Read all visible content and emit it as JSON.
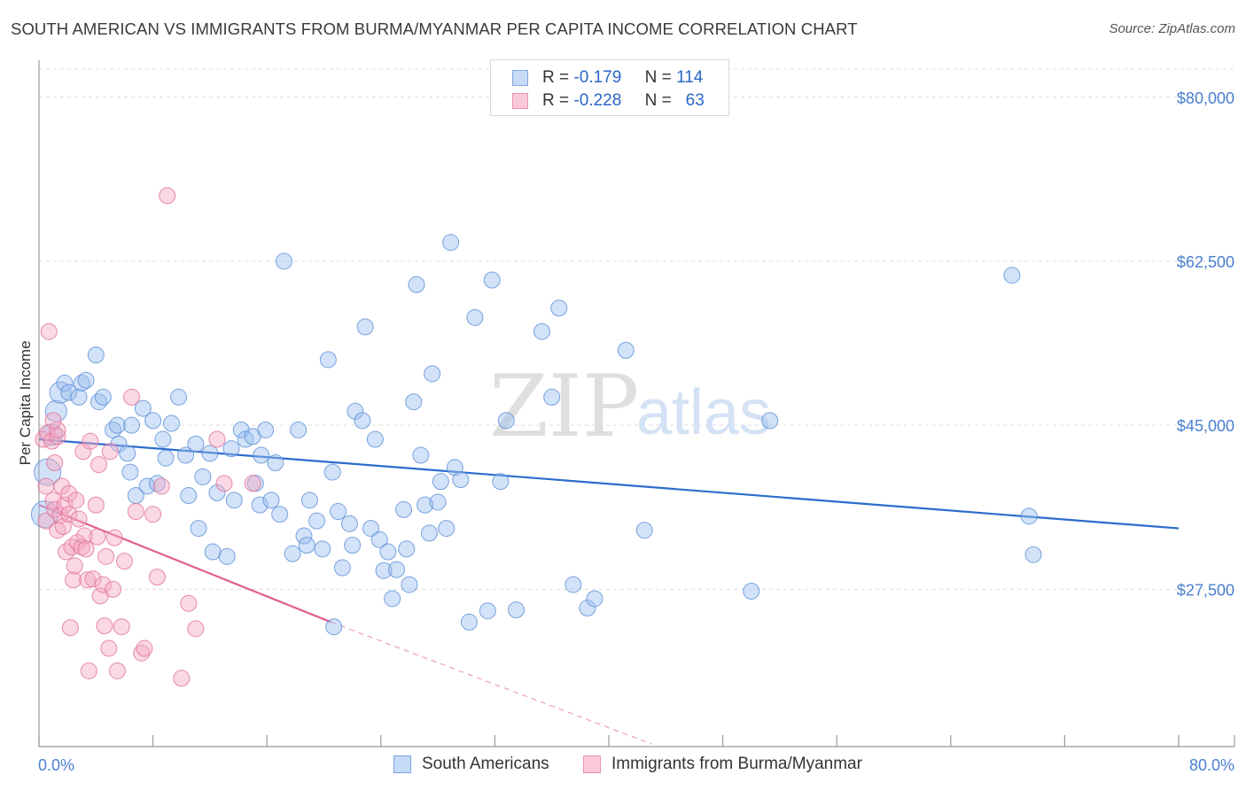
{
  "title": "SOUTH AMERICAN VS IMMIGRANTS FROM BURMA/MYANMAR PER CAPITA INCOME CORRELATION CHART",
  "source": "Source: ZipAtlas.com",
  "watermark": {
    "zip": "ZIP",
    "atlas": "atlas"
  },
  "legend": {
    "rows": [
      {
        "r_label": "R =",
        "r_value": "-0.179",
        "n_label": "N =",
        "n_value": "114",
        "color": "#9bbfef"
      },
      {
        "r_label": "R =",
        "r_value": "-0.228",
        "n_label": "N =",
        "n_value": "63",
        "color": "#f4a9c3"
      }
    ]
  },
  "bottom_legend": [
    {
      "label": "South Americans",
      "color": "#9bbfef"
    },
    {
      "label": "Immigrants from Burma/Myanmar",
      "color": "#f4a9c3"
    }
  ],
  "chart_data": {
    "type": "scatter",
    "xlabel": "",
    "ylabel": "Per Capita Income",
    "xlim": [
      0,
      80
    ],
    "ylim": [
      11000,
      83000
    ],
    "x_tick_labels": [
      "0.0%",
      "80.0%"
    ],
    "y_ticks": [
      27500,
      45000,
      62500,
      80000
    ],
    "y_tick_labels": [
      "$27,500",
      "$45,000",
      "$62,500",
      "$80,000"
    ],
    "series": [
      {
        "name": "South Americans",
        "color": "#9bbfef",
        "stroke": "#5b8fd6",
        "trend": {
          "x0": 0,
          "y0": 43500,
          "x1": 80,
          "y1": 34000,
          "color": "#2a6ccc"
        },
        "points": [
          [
            0.4,
            35500,
            3
          ],
          [
            0.6,
            40000,
            3
          ],
          [
            0.9,
            44000,
            2
          ],
          [
            1.2,
            46500,
            2
          ],
          [
            1.5,
            48500,
            2
          ],
          [
            1.8,
            49500,
            1
          ],
          [
            2.1,
            48500,
            1
          ],
          [
            2.8,
            48000,
            1
          ],
          [
            3.0,
            49500,
            1
          ],
          [
            3.3,
            49800,
            1
          ],
          [
            4.0,
            52500,
            1
          ],
          [
            4.2,
            47500,
            1
          ],
          [
            4.5,
            48000,
            1
          ],
          [
            5.2,
            44500,
            1
          ],
          [
            5.5,
            45000,
            1
          ],
          [
            5.6,
            43000,
            1
          ],
          [
            6.2,
            42000,
            1
          ],
          [
            6.5,
            45000,
            1
          ],
          [
            6.4,
            40000,
            1
          ],
          [
            6.8,
            37500,
            1
          ],
          [
            7.3,
            46800,
            1
          ],
          [
            7.6,
            38500,
            1
          ],
          [
            8.0,
            45500,
            1
          ],
          [
            8.3,
            38800,
            1
          ],
          [
            8.7,
            43500,
            1
          ],
          [
            8.9,
            41500,
            1
          ],
          [
            9.3,
            45200,
            1
          ],
          [
            9.8,
            48000,
            1
          ],
          [
            10.3,
            41800,
            1
          ],
          [
            10.5,
            37500,
            1
          ],
          [
            11.0,
            43000,
            1
          ],
          [
            11.2,
            34000,
            1
          ],
          [
            11.5,
            39500,
            1
          ],
          [
            12.0,
            42000,
            1
          ],
          [
            12.2,
            31500,
            1
          ],
          [
            12.5,
            37800,
            1
          ],
          [
            13.2,
            31000,
            1
          ],
          [
            13.5,
            42500,
            1
          ],
          [
            13.7,
            37000,
            1
          ],
          [
            14.2,
            44500,
            1
          ],
          [
            14.5,
            43500,
            1
          ],
          [
            15.0,
            43800,
            1
          ],
          [
            15.2,
            38800,
            1
          ],
          [
            15.5,
            36500,
            1
          ],
          [
            15.6,
            41800,
            1
          ],
          [
            15.9,
            44500,
            1
          ],
          [
            16.3,
            37000,
            1
          ],
          [
            16.6,
            41000,
            1
          ],
          [
            16.9,
            35500,
            1
          ],
          [
            17.2,
            62500,
            1
          ],
          [
            17.8,
            31300,
            1
          ],
          [
            18.2,
            44500,
            1
          ],
          [
            18.6,
            33200,
            1
          ],
          [
            18.8,
            32200,
            1
          ],
          [
            19.0,
            37000,
            1
          ],
          [
            19.5,
            34800,
            1
          ],
          [
            19.9,
            31800,
            1
          ],
          [
            20.3,
            52000,
            1
          ],
          [
            20.6,
            40000,
            1
          ],
          [
            21.0,
            35800,
            1
          ],
          [
            21.3,
            29800,
            1
          ],
          [
            21.8,
            34500,
            1
          ],
          [
            22.0,
            32200,
            1
          ],
          [
            22.2,
            46500,
            1
          ],
          [
            22.7,
            45500,
            1
          ],
          [
            22.9,
            55500,
            1
          ],
          [
            23.3,
            34000,
            1
          ],
          [
            23.6,
            43500,
            1
          ],
          [
            23.9,
            32800,
            1
          ],
          [
            24.2,
            29500,
            1
          ],
          [
            24.5,
            31500,
            1
          ],
          [
            24.8,
            26500,
            1
          ],
          [
            25.1,
            29600,
            1
          ],
          [
            25.6,
            36000,
            1
          ],
          [
            25.8,
            31800,
            1
          ],
          [
            26.0,
            28000,
            1
          ],
          [
            26.3,
            47500,
            1
          ],
          [
            26.5,
            60000,
            1
          ],
          [
            26.8,
            41800,
            1
          ],
          [
            27.1,
            36500,
            1
          ],
          [
            27.4,
            33500,
            1
          ],
          [
            27.6,
            50500,
            1
          ],
          [
            28.0,
            36800,
            1
          ],
          [
            28.2,
            39000,
            1
          ],
          [
            28.6,
            34000,
            1
          ],
          [
            28.9,
            64500,
            1
          ],
          [
            29.2,
            40500,
            1
          ],
          [
            29.6,
            39200,
            1
          ],
          [
            30.2,
            24000,
            1
          ],
          [
            30.6,
            56500,
            1
          ],
          [
            31.5,
            25200,
            1
          ],
          [
            31.8,
            60500,
            1
          ],
          [
            32.4,
            39000,
            1
          ],
          [
            32.8,
            45500,
            1
          ],
          [
            33.5,
            25300,
            1
          ],
          [
            35.3,
            55000,
            1
          ],
          [
            36.0,
            48000,
            1
          ],
          [
            36.5,
            57500,
            1
          ],
          [
            37.5,
            28000,
            1
          ],
          [
            38.5,
            25500,
            1
          ],
          [
            39.0,
            26500,
            1
          ],
          [
            41.2,
            53000,
            1
          ],
          [
            42.5,
            33800,
            1
          ],
          [
            50.0,
            27300,
            1
          ],
          [
            51.3,
            45500,
            1
          ],
          [
            68.3,
            61000,
            1
          ],
          [
            69.5,
            35300,
            1
          ],
          [
            69.8,
            31200,
            1
          ],
          [
            20.7,
            23500,
            1
          ]
        ]
      },
      {
        "name": "Immigrants from Burma/Myanmar",
        "color": "#f4a9c3",
        "stroke": "#e0709a",
        "trend": {
          "x0": 0,
          "y0": 36500,
          "x1": 20.5,
          "y1": 24000,
          "color": "#e0608c",
          "dash_to_x": 43,
          "dash_to_y": 11000
        },
        "points": [
          [
            0.3,
            43500,
            1
          ],
          [
            0.5,
            38500,
            1
          ],
          [
            0.5,
            34800,
            1
          ],
          [
            0.6,
            44200,
            1
          ],
          [
            0.7,
            55000,
            1
          ],
          [
            0.9,
            43300,
            1
          ],
          [
            1.0,
            37000,
            1
          ],
          [
            1.1,
            41000,
            1
          ],
          [
            1.1,
            36000,
            1
          ],
          [
            1.3,
            43800,
            1
          ],
          [
            1.3,
            33800,
            1
          ],
          [
            1.5,
            35400,
            1
          ],
          [
            1.6,
            38500,
            1
          ],
          [
            1.7,
            34200,
            1
          ],
          [
            1.8,
            36500,
            1
          ],
          [
            1.9,
            31500,
            1
          ],
          [
            2.1,
            37700,
            1
          ],
          [
            2.1,
            35500,
            1
          ],
          [
            2.2,
            23400,
            1
          ],
          [
            2.3,
            32000,
            1
          ],
          [
            2.4,
            28500,
            1
          ],
          [
            2.5,
            30000,
            1
          ],
          [
            2.6,
            37000,
            1
          ],
          [
            2.7,
            32500,
            1
          ],
          [
            2.8,
            35000,
            1
          ],
          [
            3.0,
            32000,
            1
          ],
          [
            3.1,
            42200,
            1
          ],
          [
            3.2,
            33200,
            1
          ],
          [
            3.3,
            31800,
            1
          ],
          [
            3.4,
            28500,
            1
          ],
          [
            3.5,
            18800,
            1
          ],
          [
            3.6,
            43300,
            1
          ],
          [
            3.8,
            28600,
            1
          ],
          [
            4.0,
            36500,
            1
          ],
          [
            4.1,
            33100,
            1
          ],
          [
            4.2,
            40800,
            1
          ],
          [
            4.3,
            26800,
            1
          ],
          [
            4.5,
            28000,
            1
          ],
          [
            4.6,
            23600,
            1
          ],
          [
            4.7,
            31000,
            1
          ],
          [
            4.9,
            21200,
            1
          ],
          [
            5.0,
            42200,
            1
          ],
          [
            5.2,
            27500,
            1
          ],
          [
            5.3,
            33000,
            1
          ],
          [
            5.5,
            18800,
            1
          ],
          [
            5.8,
            23500,
            1
          ],
          [
            6.0,
            30500,
            1
          ],
          [
            6.5,
            48000,
            1
          ],
          [
            7.2,
            20700,
            1
          ],
          [
            7.4,
            21200,
            1
          ],
          [
            8.0,
            35500,
            1
          ],
          [
            8.3,
            28800,
            1
          ],
          [
            8.6,
            38500,
            1
          ],
          [
            9.0,
            69500,
            1
          ],
          [
            10.0,
            18000,
            1
          ],
          [
            10.5,
            26000,
            1
          ],
          [
            11.0,
            23300,
            1
          ],
          [
            12.5,
            43500,
            1
          ],
          [
            13.0,
            38800,
            1
          ],
          [
            15.0,
            38800,
            1
          ],
          [
            6.8,
            35800,
            1
          ],
          [
            1.3,
            44500,
            1
          ],
          [
            1.0,
            45500,
            1
          ]
        ]
      }
    ]
  }
}
